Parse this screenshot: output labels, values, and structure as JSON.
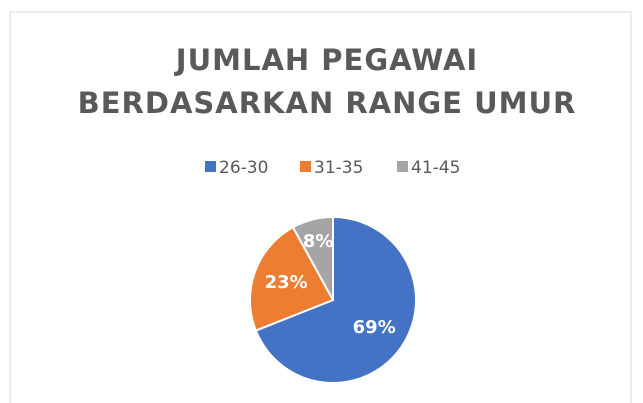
{
  "chart_data": {
    "type": "pie",
    "title": [
      "JUMLAH PEGAWAI",
      "BERDASARKAN RANGE UMUR"
    ],
    "categories": [
      "26-30",
      "31-35",
      "41-45"
    ],
    "values": [
      69,
      23,
      8
    ],
    "value_labels": [
      "69%",
      "23%",
      "8%"
    ],
    "colors": [
      "#4472c4",
      "#ed7d31",
      "#a5a5a5"
    ],
    "legend": "top"
  }
}
